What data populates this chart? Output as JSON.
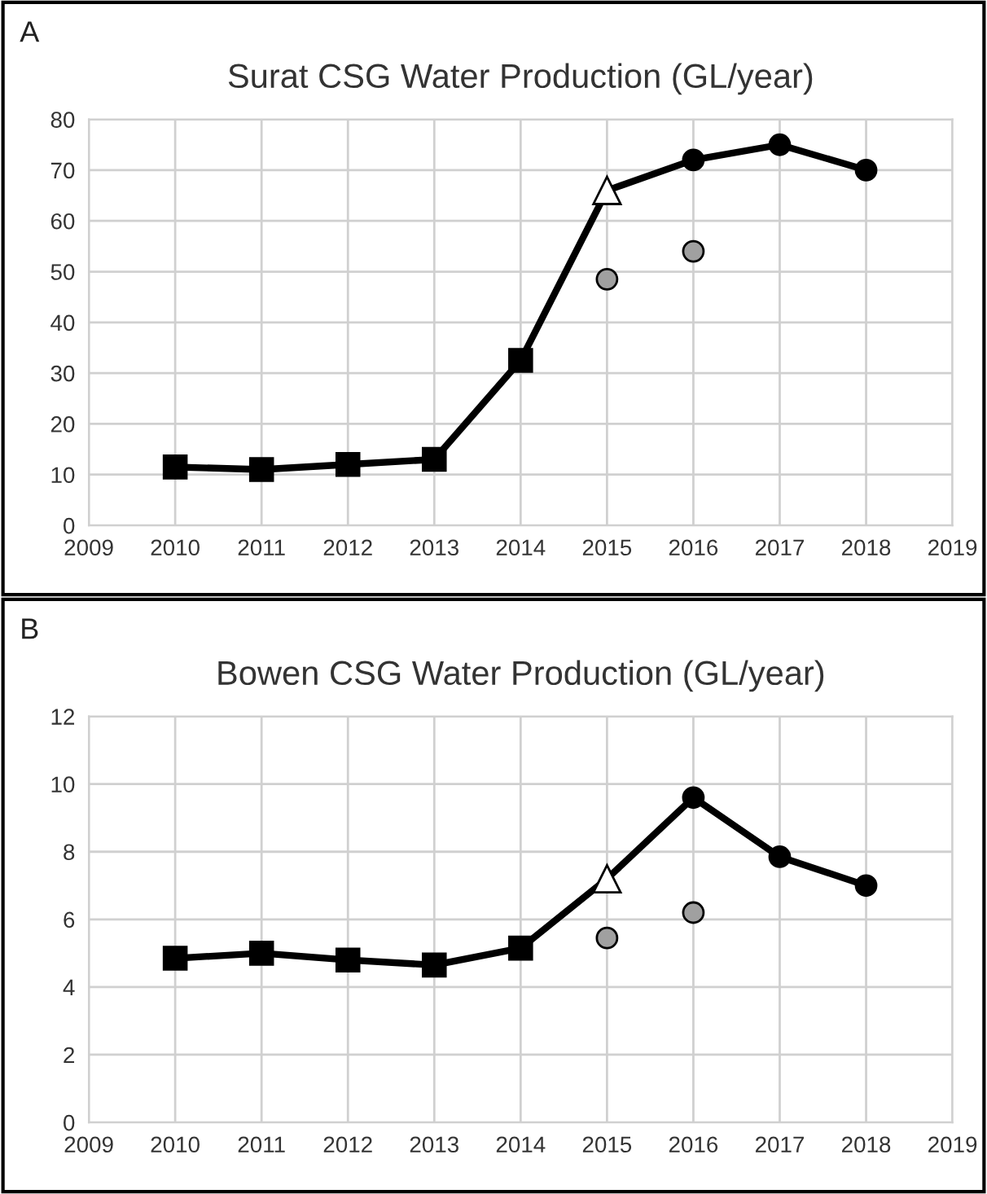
{
  "chart_data": [
    {
      "type": "line",
      "title": "Surat CSG Water Production (GL/year)",
      "annotations": [
        "A"
      ],
      "xlim": [
        2009,
        2019
      ],
      "xticks": [
        2009,
        2010,
        2011,
        2012,
        2013,
        2014,
        2015,
        2016,
        2017,
        2018,
        2019
      ],
      "ylim": [
        0,
        80
      ],
      "yticks": [
        0,
        10,
        20,
        30,
        40,
        50,
        60,
        70,
        80
      ],
      "grid": true,
      "series": [
        {
          "marker": "none",
          "color": "#000000",
          "x": [
            2010,
            2011,
            2012,
            2013,
            2014,
            2015,
            2016,
            2017,
            2018
          ],
          "values": [
            11.5,
            11,
            12,
            13,
            32.5,
            66,
            72,
            75,
            70
          ]
        },
        {
          "type": "scatter",
          "marker": "square",
          "color": "#000000",
          "x": [
            2010,
            2011,
            2012,
            2013,
            2014
          ],
          "values": [
            11.5,
            11,
            12,
            13,
            32.5
          ]
        },
        {
          "type": "scatter",
          "marker": "triangle",
          "color": "#ffffff",
          "x": [
            2015
          ],
          "values": [
            66
          ]
        },
        {
          "type": "scatter",
          "marker": "circle",
          "color": "#000000",
          "x": [
            2016,
            2017,
            2018
          ],
          "values": [
            72,
            75,
            70
          ]
        },
        {
          "type": "scatter",
          "marker": "circle",
          "color": "#a0a0a0",
          "x": [
            2015,
            2016
          ],
          "values": [
            48.5,
            54
          ]
        }
      ]
    },
    {
      "type": "line",
      "title": "Bowen CSG Water Production (GL/year)",
      "annotations": [
        "B"
      ],
      "xlim": [
        2009,
        2019
      ],
      "xticks": [
        2009,
        2010,
        2011,
        2012,
        2013,
        2014,
        2015,
        2016,
        2017,
        2018,
        2019
      ],
      "ylim": [
        0,
        12
      ],
      "yticks": [
        0,
        2,
        4,
        6,
        8,
        10,
        12
      ],
      "grid": true,
      "series": [
        {
          "marker": "none",
          "color": "#000000",
          "x": [
            2010,
            2011,
            2012,
            2013,
            2014,
            2015,
            2016,
            2017,
            2018
          ],
          "values": [
            4.85,
            5.0,
            4.8,
            4.65,
            5.15,
            7.2,
            9.6,
            7.85,
            7.0
          ]
        },
        {
          "type": "scatter",
          "marker": "square",
          "color": "#000000",
          "x": [
            2010,
            2011,
            2012,
            2013,
            2014
          ],
          "values": [
            4.85,
            5.0,
            4.8,
            4.65,
            5.15
          ]
        },
        {
          "type": "scatter",
          "marker": "triangle",
          "color": "#ffffff",
          "x": [
            2015
          ],
          "values": [
            7.2
          ]
        },
        {
          "type": "scatter",
          "marker": "circle",
          "color": "#000000",
          "x": [
            2016,
            2017,
            2018
          ],
          "values": [
            9.6,
            7.85,
            7.0
          ]
        },
        {
          "type": "scatter",
          "marker": "circle",
          "color": "#a0a0a0",
          "x": [
            2015,
            2016
          ],
          "values": [
            5.45,
            6.2
          ]
        }
      ]
    }
  ]
}
